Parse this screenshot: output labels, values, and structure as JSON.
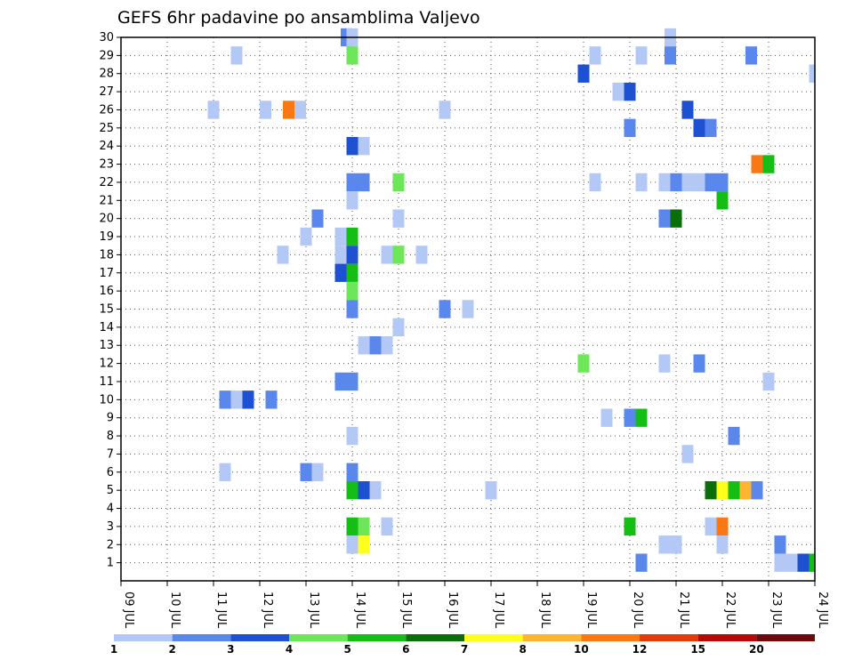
{
  "chart_data": {
    "type": "heatmap",
    "title": "GEFS 6hr padavine po ansamblima Valjevo",
    "xlabel": "",
    "ylabel": "",
    "x_ticks": [
      "09 JUL",
      "10 JUL",
      "11 JUL",
      "12 JUL",
      "13 JUL",
      "14 JUL",
      "15 JUL",
      "16 JUL",
      "17 JUL",
      "18 JUL",
      "19 JUL",
      "20 JUL",
      "21 JUL",
      "22 JUL",
      "23 JUL",
      "24 JUL"
    ],
    "x_range": [
      0,
      60
    ],
    "y_ticks": [
      "1",
      "2",
      "3",
      "4",
      "5",
      "6",
      "7",
      "8",
      "9",
      "10",
      "11",
      "12",
      "13",
      "14",
      "15",
      "16",
      "17",
      "18",
      "19",
      "20",
      "21",
      "22",
      "23",
      "24",
      "25",
      "26",
      "27",
      "28",
      "29",
      "30"
    ],
    "y_range": [
      0,
      30
    ],
    "grid": true,
    "colorbar": {
      "labels": [
        "1",
        "2",
        "3",
        "4",
        "5",
        "6",
        "7",
        "8",
        "10",
        "12",
        "15",
        "20"
      ],
      "colors": [
        "#b4c8f5",
        "#5a87eb",
        "#1e50d2",
        "#6ee65a",
        "#14be14",
        "#0a6e0a",
        "#ffff1e",
        "#ffb432",
        "#fa7814",
        "#e13c0a",
        "#b40a0a",
        "#6e0a0a"
      ]
    },
    "cells_note": "x = time step index (4 steps per day from 09 JUL 00z), y = ensemble member, c = color class index",
    "cells": [
      {
        "x": 19.5,
        "y": 30,
        "c": 2
      },
      {
        "x": 20,
        "y": 30,
        "c": 1
      },
      {
        "x": 47.5,
        "y": 30,
        "c": 1
      },
      {
        "x": 10,
        "y": 29,
        "c": 1
      },
      {
        "x": 20,
        "y": 29,
        "c": 4
      },
      {
        "x": 41,
        "y": 29,
        "c": 1
      },
      {
        "x": 45,
        "y": 29,
        "c": 1
      },
      {
        "x": 47.5,
        "y": 29,
        "c": 2
      },
      {
        "x": 54.5,
        "y": 29,
        "c": 2
      },
      {
        "x": 40,
        "y": 28,
        "c": 3
      },
      {
        "x": 60,
        "y": 28,
        "c": 1
      },
      {
        "x": 43,
        "y": 27,
        "c": 1
      },
      {
        "x": 44,
        "y": 27,
        "c": 3
      },
      {
        "x": 8,
        "y": 26,
        "c": 1
      },
      {
        "x": 12.5,
        "y": 26,
        "c": 1
      },
      {
        "x": 14.5,
        "y": 26,
        "c": 9
      },
      {
        "x": 15.5,
        "y": 26,
        "c": 1
      },
      {
        "x": 28,
        "y": 26,
        "c": 1
      },
      {
        "x": 49,
        "y": 26,
        "c": 3
      },
      {
        "x": 44,
        "y": 25,
        "c": 2
      },
      {
        "x": 50,
        "y": 25,
        "c": 3
      },
      {
        "x": 51,
        "y": 25,
        "c": 2
      },
      {
        "x": 20,
        "y": 24,
        "c": 3
      },
      {
        "x": 21,
        "y": 24,
        "c": 1
      },
      {
        "x": 55,
        "y": 23,
        "c": 9
      },
      {
        "x": 56,
        "y": 23,
        "c": 5
      },
      {
        "x": 20,
        "y": 22,
        "c": 2
      },
      {
        "x": 21,
        "y": 22,
        "c": 2
      },
      {
        "x": 24,
        "y": 22,
        "c": 4
      },
      {
        "x": 41,
        "y": 22,
        "c": 1
      },
      {
        "x": 45,
        "y": 22,
        "c": 1
      },
      {
        "x": 47,
        "y": 22,
        "c": 1
      },
      {
        "x": 48,
        "y": 22,
        "c": 2
      },
      {
        "x": 49,
        "y": 22,
        "c": 1
      },
      {
        "x": 50,
        "y": 22,
        "c": 1
      },
      {
        "x": 51,
        "y": 22,
        "c": 2
      },
      {
        "x": 52,
        "y": 22,
        "c": 2
      },
      {
        "x": 20,
        "y": 21,
        "c": 1
      },
      {
        "x": 52,
        "y": 21,
        "c": 5
      },
      {
        "x": 17,
        "y": 20,
        "c": 2
      },
      {
        "x": 24,
        "y": 20,
        "c": 1
      },
      {
        "x": 47,
        "y": 20,
        "c": 2
      },
      {
        "x": 48,
        "y": 20,
        "c": 6
      },
      {
        "x": 16,
        "y": 19,
        "c": 1
      },
      {
        "x": 19,
        "y": 19,
        "c": 1
      },
      {
        "x": 20,
        "y": 19,
        "c": 5
      },
      {
        "x": 14,
        "y": 18,
        "c": 1
      },
      {
        "x": 19,
        "y": 18,
        "c": 1
      },
      {
        "x": 20,
        "y": 18,
        "c": 3
      },
      {
        "x": 23,
        "y": 18,
        "c": 1
      },
      {
        "x": 24,
        "y": 18,
        "c": 4
      },
      {
        "x": 26,
        "y": 18,
        "c": 1
      },
      {
        "x": 19,
        "y": 17,
        "c": 3
      },
      {
        "x": 20,
        "y": 17,
        "c": 5
      },
      {
        "x": 20,
        "y": 16,
        "c": 4
      },
      {
        "x": 20,
        "y": 15,
        "c": 2
      },
      {
        "x": 28,
        "y": 15,
        "c": 2
      },
      {
        "x": 30,
        "y": 15,
        "c": 1
      },
      {
        "x": 24,
        "y": 14,
        "c": 1
      },
      {
        "x": 21,
        "y": 13,
        "c": 1
      },
      {
        "x": 22,
        "y": 13,
        "c": 2
      },
      {
        "x": 23,
        "y": 13,
        "c": 1
      },
      {
        "x": 40,
        "y": 12,
        "c": 4
      },
      {
        "x": 47,
        "y": 12,
        "c": 1
      },
      {
        "x": 50,
        "y": 12,
        "c": 2
      },
      {
        "x": 19,
        "y": 11,
        "c": 2
      },
      {
        "x": 20,
        "y": 11,
        "c": 2
      },
      {
        "x": 56,
        "y": 11,
        "c": 1
      },
      {
        "x": 9,
        "y": 10,
        "c": 2
      },
      {
        "x": 10,
        "y": 10,
        "c": 1
      },
      {
        "x": 11,
        "y": 10,
        "c": 3
      },
      {
        "x": 13,
        "y": 10,
        "c": 2
      },
      {
        "x": 42,
        "y": 9,
        "c": 1
      },
      {
        "x": 44,
        "y": 9,
        "c": 2
      },
      {
        "x": 45,
        "y": 9,
        "c": 5
      },
      {
        "x": 20,
        "y": 8,
        "c": 1
      },
      {
        "x": 53,
        "y": 8,
        "c": 2
      },
      {
        "x": 49,
        "y": 7,
        "c": 1
      },
      {
        "x": 9,
        "y": 6,
        "c": 1
      },
      {
        "x": 16,
        "y": 6,
        "c": 2
      },
      {
        "x": 17,
        "y": 6,
        "c": 1
      },
      {
        "x": 20,
        "y": 6,
        "c": 2
      },
      {
        "x": 20,
        "y": 5,
        "c": 5
      },
      {
        "x": 21,
        "y": 5,
        "c": 3
      },
      {
        "x": 22,
        "y": 5,
        "c": 1
      },
      {
        "x": 32,
        "y": 5,
        "c": 1
      },
      {
        "x": 51,
        "y": 5,
        "c": 6
      },
      {
        "x": 52,
        "y": 5,
        "c": 7
      },
      {
        "x": 53,
        "y": 5,
        "c": 5
      },
      {
        "x": 54,
        "y": 5,
        "c": 8
      },
      {
        "x": 55,
        "y": 5,
        "c": 2
      },
      {
        "x": 20,
        "y": 3,
        "c": 5
      },
      {
        "x": 21,
        "y": 3,
        "c": 4
      },
      {
        "x": 23,
        "y": 3,
        "c": 1
      },
      {
        "x": 44,
        "y": 3,
        "c": 5
      },
      {
        "x": 51,
        "y": 3,
        "c": 1
      },
      {
        "x": 52,
        "y": 3,
        "c": 9
      },
      {
        "x": 20,
        "y": 2,
        "c": 1
      },
      {
        "x": 21,
        "y": 2,
        "c": 7
      },
      {
        "x": 47,
        "y": 2,
        "c": 1
      },
      {
        "x": 48,
        "y": 2,
        "c": 1
      },
      {
        "x": 52,
        "y": 2,
        "c": 1
      },
      {
        "x": 57,
        "y": 2,
        "c": 2
      },
      {
        "x": 45,
        "y": 1,
        "c": 2
      },
      {
        "x": 57,
        "y": 1,
        "c": 1
      },
      {
        "x": 58,
        "y": 1,
        "c": 1
      },
      {
        "x": 59,
        "y": 1,
        "c": 3
      },
      {
        "x": 60,
        "y": 1,
        "c": 5
      }
    ]
  }
}
